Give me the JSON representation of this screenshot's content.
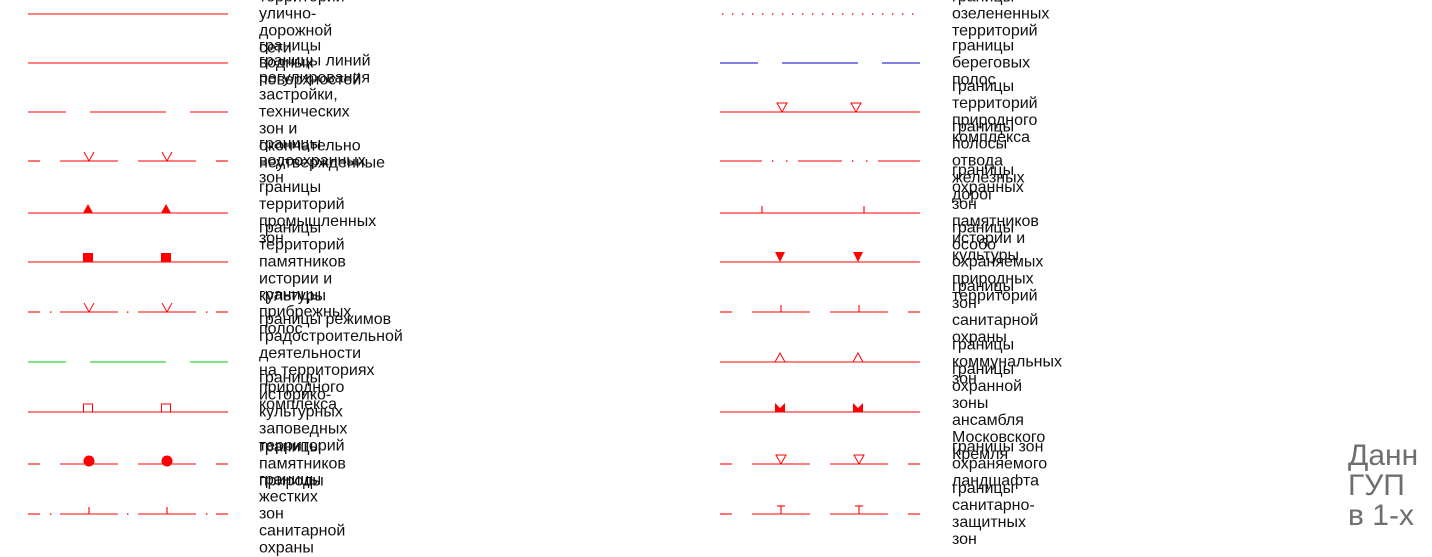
{
  "line_colors": {
    "red": "#ff0000",
    "blue": "#0000cc",
    "green": "#00c800"
  },
  "legend": {
    "left": [
      {
        "symbol": "solid-line",
        "color": "#ff0000",
        "label": "границы территорий улично-дорожной сети"
      },
      {
        "symbol": "solid-line",
        "color": "#ff0000",
        "label": "границы водных поверхностей"
      },
      {
        "symbol": "long-dash-line",
        "color": "#ff0000",
        "label": "границы линий регулирования застройки, технических\nзон и окончательно неутвержденные"
      },
      {
        "symbol": "dash-v-marks-line",
        "color": "#ff0000",
        "label": "границы водоохранных зон"
      },
      {
        "symbol": "filled-triangle-line",
        "color": "#ff0000",
        "label": "границы территорий промышленных зон"
      },
      {
        "symbol": "filled-square-line",
        "color": "#ff0000",
        "label": "границы территорий памятников истории и культуры"
      },
      {
        "symbol": "dash-dot-v-marks-line",
        "color": "#ff0000",
        "label": "границы прибрежных полос"
      },
      {
        "symbol": "long-dash-line",
        "color": "#00c800",
        "label": "границы режимов градостроительной деятельности\nна территориях природного комплекса"
      },
      {
        "symbol": "open-square-line",
        "color": "#ff0000",
        "label": "границы историко-культурных заповедных\nтерриторий"
      },
      {
        "symbol": "dash-filled-circle-line",
        "color": "#ff0000",
        "label": "границы памятников природы"
      },
      {
        "symbol": "dash-dot-tick-line",
        "color": "#ff0000",
        "label": "границы жестких зон санитарной охраны"
      }
    ],
    "right": [
      {
        "symbol": "dotted-line",
        "color": "#ff0000",
        "label": "границы озелененных территорий"
      },
      {
        "symbol": "long-dash-line",
        "color": "#0000cc",
        "label": "границы береговых полос"
      },
      {
        "symbol": "open-down-triangle-line",
        "color": "#ff0000",
        "label": "границы территорий природного комплекса"
      },
      {
        "symbol": "dash-double-dot-line",
        "color": "#ff0000",
        "label": "границы полосы отвода железных дорог"
      },
      {
        "symbol": "tick-line",
        "color": "#ff0000",
        "label": "границы охранных зон памятников истории и\nкультуры"
      },
      {
        "symbol": "filled-down-triangle-line",
        "color": "#ff0000",
        "label": "границы особо охраняемых природных территорий"
      },
      {
        "symbol": "dash-tick-line",
        "color": "#ff0000",
        "label": "границы зон санитарной охраны"
      },
      {
        "symbol": "open-up-triangle-line",
        "color": "#ff0000",
        "label": "границы коммунальных зон"
      },
      {
        "symbol": "bowtie-line",
        "color": "#ff0000",
        "label": "границы охранной зоны ансамбля Московского\nКремля"
      },
      {
        "symbol": "dash-open-down-triangle-line",
        "color": "#ff0000",
        "label": "границы зон охраняемого ландшафта"
      },
      {
        "symbol": "dash-t-marks-line",
        "color": "#ff0000",
        "label": "границы санитарно-защитных зон"
      }
    ]
  },
  "watermark": {
    "text": "Данн\nГУП\nв 1-х"
  }
}
